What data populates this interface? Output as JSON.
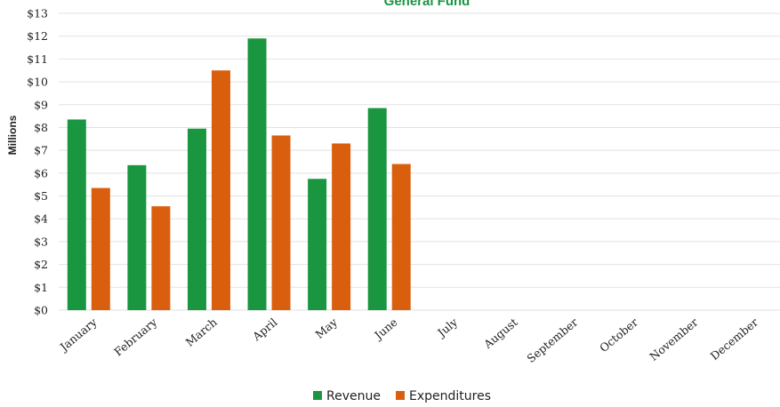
{
  "chart_data": {
    "type": "bar",
    "title": "General Fund",
    "ylabel": "Millions",
    "ylim": [
      0,
      13
    ],
    "yticks": [
      0,
      1,
      2,
      3,
      4,
      5,
      6,
      7,
      8,
      9,
      10,
      11,
      12,
      13
    ],
    "ytick_labels": [
      "$0",
      "$1",
      "$2",
      "$3",
      "$4",
      "$5",
      "$6",
      "$7",
      "$8",
      "$9",
      "$10",
      "$11",
      "$12",
      "$13"
    ],
    "categories": [
      "January",
      "February",
      "March",
      "April",
      "May",
      "June",
      "July",
      "August",
      "September",
      "October",
      "November",
      "December"
    ],
    "series": [
      {
        "name": "Revenue",
        "color": "#1a9641",
        "values": [
          8.35,
          6.35,
          7.95,
          11.9,
          5.75,
          8.85,
          null,
          null,
          null,
          null,
          null,
          null
        ]
      },
      {
        "name": "Expenditures",
        "color": "#d95f0e",
        "values": [
          5.35,
          4.55,
          10.5,
          7.65,
          7.3,
          6.4,
          null,
          null,
          null,
          null,
          null,
          null
        ]
      }
    ],
    "grid": true,
    "legend": "bottom-center",
    "title_color": "#1a9641"
  }
}
